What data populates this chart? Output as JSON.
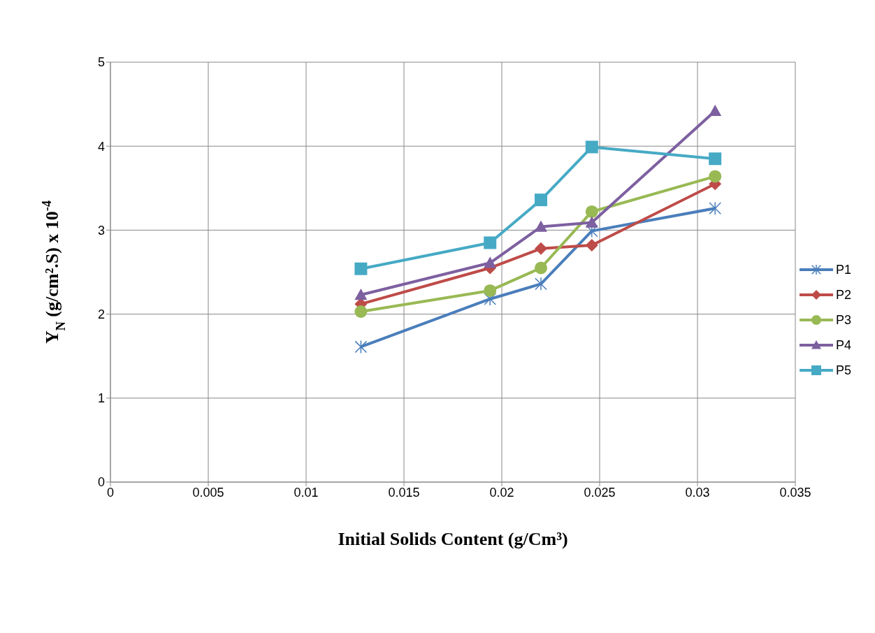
{
  "chart_data": {
    "type": "line",
    "xlabel": "Initial Solids Content (g/Cm³)",
    "ylabel": "Y$_{N}$  (g/cm².S) x 10$^{-4}$",
    "x": [
      0.0128,
      0.0194,
      0.022,
      0.0246,
      0.0309
    ],
    "series": [
      {
        "name": "P1",
        "color": "#4a7ebb",
        "marker": "cross",
        "values": [
          1.61,
          2.18,
          2.36,
          2.99,
          3.26
        ]
      },
      {
        "name": "P2",
        "color": "#be4b48",
        "marker": "diamond",
        "values": [
          2.12,
          2.55,
          2.78,
          2.82,
          3.55
        ]
      },
      {
        "name": "P3",
        "color": "#98b954",
        "marker": "circle",
        "values": [
          2.03,
          2.28,
          2.55,
          3.22,
          3.64
        ]
      },
      {
        "name": "P4",
        "color": "#7d60a0",
        "marker": "triangle",
        "values": [
          2.23,
          2.61,
          3.04,
          3.09,
          4.42
        ]
      },
      {
        "name": "P5",
        "color": "#46aac5",
        "marker": "square",
        "values": [
          2.54,
          2.85,
          3.36,
          3.99,
          3.85
        ]
      }
    ],
    "xlim": [
      0,
      0.035
    ],
    "xticks": [
      0,
      0.005,
      0.01,
      0.015,
      0.02,
      0.025,
      0.03,
      0.035
    ],
    "ylim": [
      0,
      5
    ],
    "yticks": [
      0,
      1,
      2,
      3,
      4,
      5
    ],
    "grid": true,
    "legend": "right",
    "line_style": "solid"
  }
}
